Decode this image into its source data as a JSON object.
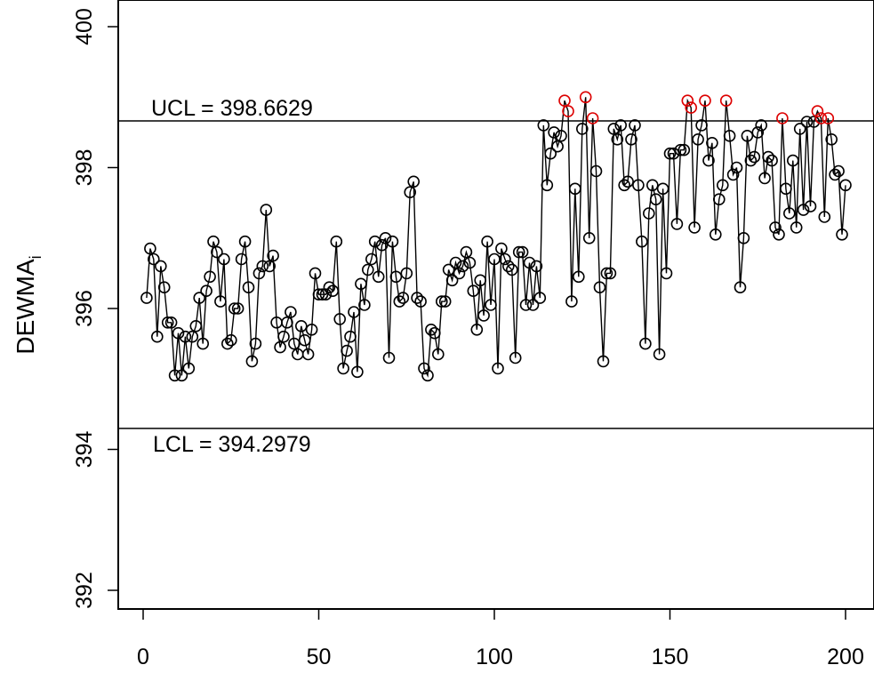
{
  "chart_data": {
    "type": "line",
    "ylabel": "DEWMA",
    "ylabel_subscript": "i",
    "xlim": [
      0,
      200
    ],
    "ylim": [
      392,
      400
    ],
    "xticks": [
      "0",
      "50",
      "100",
      "150",
      "200"
    ],
    "yticks": [
      "392",
      "394",
      "396",
      "398",
      "400"
    ],
    "ucl": 398.6629,
    "lcl": 394.2979,
    "ucl_label": "UCL = 398.6629",
    "lcl_label": "LCL = 394.2979",
    "grid": false,
    "colors": {
      "in_control": "#000000",
      "out_of_control": "#dd0000"
    },
    "x": [
      1,
      2,
      3,
      4,
      5,
      6,
      7,
      8,
      9,
      10,
      11,
      12,
      13,
      14,
      15,
      16,
      17,
      18,
      19,
      20,
      21,
      22,
      23,
      24,
      25,
      26,
      27,
      28,
      29,
      30,
      31,
      32,
      33,
      34,
      35,
      36,
      37,
      38,
      39,
      40,
      41,
      42,
      43,
      44,
      45,
      46,
      47,
      48,
      49,
      50,
      51,
      52,
      53,
      54,
      55,
      56,
      57,
      58,
      59,
      60,
      61,
      62,
      63,
      64,
      65,
      66,
      67,
      68,
      69,
      70,
      71,
      72,
      73,
      74,
      75,
      76,
      77,
      78,
      79,
      80,
      81,
      82,
      83,
      84,
      85,
      86,
      87,
      88,
      89,
      90,
      91,
      92,
      93,
      94,
      95,
      96,
      97,
      98,
      99,
      100,
      101,
      102,
      103,
      104,
      105,
      106,
      107,
      108,
      109,
      110,
      111,
      112,
      113,
      114,
      115,
      116,
      117,
      118,
      119,
      120,
      121,
      122,
      123,
      124,
      125,
      126,
      127,
      128,
      129,
      130,
      131,
      132,
      133,
      134,
      135,
      136,
      137,
      138,
      139,
      140,
      141,
      142,
      143,
      144,
      145,
      146,
      147,
      148,
      149,
      150,
      151,
      152,
      153,
      154,
      155,
      156,
      157,
      158,
      159,
      160,
      161,
      162,
      163,
      164,
      165,
      166,
      167,
      168,
      169,
      170,
      171,
      172,
      173,
      174,
      175,
      176,
      177,
      178,
      179,
      180,
      181,
      182,
      183,
      184,
      185,
      186,
      187,
      188,
      189,
      190,
      191,
      192,
      193,
      194,
      195,
      196,
      197,
      198,
      199,
      200
    ],
    "values": [
      396.15,
      396.85,
      396.7,
      395.6,
      396.6,
      396.3,
      395.8,
      395.8,
      395.05,
      395.65,
      395.05,
      395.6,
      395.15,
      395.6,
      395.75,
      396.15,
      395.5,
      396.25,
      396.45,
      396.95,
      396.8,
      396.1,
      396.7,
      395.5,
      395.55,
      396.0,
      396.0,
      396.7,
      396.95,
      396.3,
      395.25,
      395.5,
      396.5,
      396.6,
      397.4,
      396.6,
      396.75,
      395.8,
      395.45,
      395.6,
      395.8,
      395.95,
      395.5,
      395.35,
      395.75,
      395.55,
      395.35,
      395.7,
      396.5,
      396.2,
      396.2,
      396.2,
      396.3,
      396.25,
      396.95,
      395.85,
      395.15,
      395.4,
      395.6,
      395.95,
      395.1,
      396.35,
      396.05,
      396.55,
      396.7,
      396.95,
      396.45,
      396.9,
      397.0,
      395.3,
      396.95,
      396.45,
      396.1,
      396.15,
      396.5,
      397.65,
      397.8,
      396.15,
      396.1,
      395.15,
      395.05,
      395.7,
      395.65,
      395.35,
      396.1,
      396.1,
      396.55,
      396.4,
      396.65,
      396.5,
      396.6,
      396.8,
      396.65,
      396.25,
      395.7,
      396.4,
      395.9,
      396.95,
      396.05,
      396.7,
      395.15,
      396.85,
      396.7,
      396.6,
      396.55,
      395.3,
      396.8,
      396.8,
      396.05,
      396.65,
      396.05,
      396.6,
      396.15,
      398.6,
      397.75,
      398.2,
      398.5,
      398.3,
      398.45,
      398.95,
      398.8,
      396.1,
      397.7,
      396.45,
      398.55,
      399.0,
      397.0,
      398.7,
      397.95,
      396.3,
      395.25,
      396.5,
      396.5,
      398.55,
      398.4,
      398.6,
      397.75,
      397.8,
      398.4,
      398.6,
      397.75,
      396.95,
      395.5,
      397.35,
      397.75,
      397.55,
      395.35,
      397.7,
      396.5,
      398.2,
      398.2,
      397.2,
      398.25,
      398.25,
      398.95,
      398.85,
      397.15,
      398.4,
      398.6,
      398.95,
      398.1,
      398.35,
      397.05,
      397.55,
      397.75,
      398.95,
      398.45,
      397.9,
      398.0,
      396.3,
      397.0,
      398.45,
      398.1,
      398.15,
      398.5,
      398.6,
      397.85,
      398.15,
      398.1,
      397.15,
      397.05,
      398.7,
      397.7,
      397.35,
      398.1,
      397.15,
      398.55,
      397.4,
      398.65,
      397.45,
      398.65,
      398.8,
      398.7,
      397.3,
      398.7,
      398.4,
      397.9,
      397.95,
      397.05,
      397.75
    ]
  }
}
